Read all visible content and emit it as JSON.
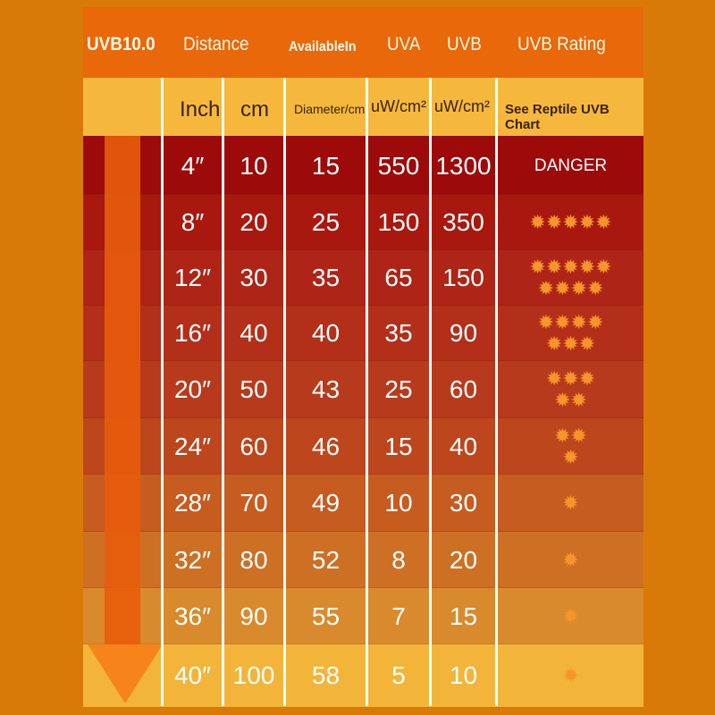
{
  "header": {
    "brand": "UVB10.0",
    "distance": "Distance",
    "available": "AvailableIn",
    "uva": "UVA",
    "uvb": "UVB",
    "rating": "UVB Rating"
  },
  "subheader": {
    "inch": "Inch",
    "cm": "cm",
    "diameter": "Diameter/cm",
    "uva_unit": "uW/cm²",
    "uvb_unit": "uW/cm²",
    "rating_note": "See Reptile UVB Chart"
  },
  "rows": [
    {
      "inch": "4″",
      "cm": "10",
      "diameter": "15",
      "uva": "550",
      "uvb": "1300",
      "rating": "DANGER",
      "stars": []
    },
    {
      "inch": "8″",
      "cm": "20",
      "diameter": "25",
      "uva": "150",
      "uvb": "350",
      "rating": "",
      "stars": [
        5
      ]
    },
    {
      "inch": "12″",
      "cm": "30",
      "diameter": "35",
      "uva": "65",
      "uvb": "150",
      "rating": "",
      "stars": [
        5,
        4
      ]
    },
    {
      "inch": "16″",
      "cm": "40",
      "diameter": "40",
      "uva": "35",
      "uvb": "90",
      "rating": "",
      "stars": [
        4,
        3
      ]
    },
    {
      "inch": "20″",
      "cm": "50",
      "diameter": "43",
      "uva": "25",
      "uvb": "60",
      "rating": "",
      "stars": [
        3,
        2
      ]
    },
    {
      "inch": "24″",
      "cm": "60",
      "diameter": "46",
      "uva": "15",
      "uvb": "40",
      "rating": "",
      "stars": [
        2,
        1
      ]
    },
    {
      "inch": "28″",
      "cm": "70",
      "diameter": "49",
      "uva": "10",
      "uvb": "30",
      "rating": "",
      "stars": [
        1
      ]
    },
    {
      "inch": "32″",
      "cm": "80",
      "diameter": "52",
      "uva": "8",
      "uvb": "20",
      "rating": "",
      "stars": [
        1
      ]
    },
    {
      "inch": "36″",
      "cm": "90",
      "diameter": "55",
      "uva": "7",
      "uvb": "15",
      "rating": "",
      "stars": [
        1
      ]
    },
    {
      "inch": "40″",
      "cm": "100",
      "diameter": "58",
      "uva": "5",
      "uvb": "10",
      "rating": "",
      "stars": [
        1
      ]
    }
  ],
  "colors": {
    "row_gradient": [
      "#9c0a0a",
      "#a8180f",
      "#ae2416",
      "#b32f1a",
      "#b83a1c",
      "#bd461d",
      "#c65c20",
      "#cd7024",
      "#d98a2c",
      "#f2b53a"
    ],
    "star": "#f6962a"
  },
  "icons": {
    "bulb": "uv-bulb-icon",
    "star": "sun-star-icon",
    "arrow": "down-arrow-icon"
  }
}
